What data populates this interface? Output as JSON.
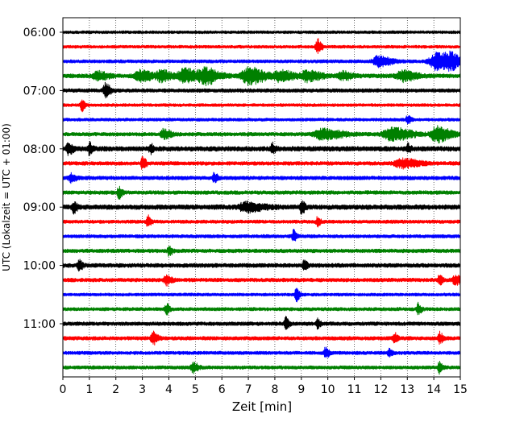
{
  "chart_data": {
    "type": "line",
    "title": "",
    "xlabel": "Zeit  [min]",
    "ylabel": "UTC (Lokalzeit = UTC + 01:00)",
    "xlim": [
      0,
      15
    ],
    "x_ticks": [
      0,
      1,
      2,
      3,
      4,
      5,
      6,
      7,
      8,
      9,
      10,
      11,
      12,
      13,
      14,
      15
    ],
    "y_tick_labels": [
      "06:00",
      "07:00",
      "08:00",
      "09:00",
      "10:00",
      "11:00"
    ],
    "grid": "vertical dotted",
    "trace_interval_minutes": 15,
    "traces": [
      {
        "start": "06:00",
        "color": "#000000",
        "noise": 0.25,
        "events": []
      },
      {
        "start": "06:15",
        "color": "#ff0000",
        "noise": 0.3,
        "events": [
          {
            "t": 9.6,
            "amp": 9,
            "dur": 0.12
          }
        ]
      },
      {
        "start": "06:30",
        "color": "#0000ff",
        "noise": 0.35,
        "events": [
          {
            "t": 11.9,
            "amp": 6,
            "dur": 0.4
          },
          {
            "t": 14.1,
            "amp": 10,
            "dur": 0.5
          },
          {
            "t": 14.6,
            "amp": 6,
            "dur": 0.4
          }
        ]
      },
      {
        "start": "06:45",
        "color": "#008000",
        "noise": 0.6,
        "events": [
          {
            "t": 1.3,
            "amp": 5,
            "dur": 0.3
          },
          {
            "t": 2.9,
            "amp": 6,
            "dur": 0.4
          },
          {
            "t": 3.7,
            "amp": 6,
            "dur": 0.3
          },
          {
            "t": 4.6,
            "amp": 8,
            "dur": 0.5
          },
          {
            "t": 5.4,
            "amp": 8,
            "dur": 0.4
          },
          {
            "t": 7.0,
            "amp": 10,
            "dur": 0.5
          },
          {
            "t": 8.2,
            "amp": 6,
            "dur": 0.4
          },
          {
            "t": 9.2,
            "amp": 6,
            "dur": 0.4
          },
          {
            "t": 10.5,
            "amp": 5,
            "dur": 0.3
          },
          {
            "t": 12.8,
            "amp": 6,
            "dur": 0.4
          }
        ]
      },
      {
        "start": "07:00",
        "color": "#000000",
        "noise": 0.5,
        "events": [
          {
            "t": 1.6,
            "amp": 8,
            "dur": 0.15
          }
        ]
      },
      {
        "start": "07:15",
        "color": "#ff0000",
        "noise": 0.3,
        "events": [
          {
            "t": 0.7,
            "amp": 7,
            "dur": 0.1
          }
        ]
      },
      {
        "start": "07:30",
        "color": "#0000ff",
        "noise": 0.3,
        "events": [
          {
            "t": 13.0,
            "amp": 5,
            "dur": 0.1
          }
        ]
      },
      {
        "start": "07:45",
        "color": "#008000",
        "noise": 0.5,
        "events": [
          {
            "t": 3.8,
            "amp": 6,
            "dur": 0.2
          },
          {
            "t": 9.8,
            "amp": 6,
            "dur": 0.6
          },
          {
            "t": 12.4,
            "amp": 7,
            "dur": 0.6
          },
          {
            "t": 14.1,
            "amp": 9,
            "dur": 0.4
          }
        ]
      },
      {
        "start": "08:00",
        "color": "#000000",
        "noise": 0.8,
        "events": [
          {
            "t": 0.2,
            "amp": 6,
            "dur": 0.15
          },
          {
            "t": 1.0,
            "amp": 7,
            "dur": 0.1
          },
          {
            "t": 3.3,
            "amp": 5,
            "dur": 0.1
          },
          {
            "t": 7.9,
            "amp": 6,
            "dur": 0.1
          },
          {
            "t": 13.0,
            "amp": 5,
            "dur": 0.1
          }
        ]
      },
      {
        "start": "08:15",
        "color": "#ff0000",
        "noise": 0.5,
        "events": [
          {
            "t": 3.0,
            "amp": 8,
            "dur": 0.1
          },
          {
            "t": 12.8,
            "amp": 5,
            "dur": 0.5
          }
        ]
      },
      {
        "start": "08:30",
        "color": "#0000ff",
        "noise": 0.5,
        "events": [
          {
            "t": 0.3,
            "amp": 5,
            "dur": 0.15
          },
          {
            "t": 5.7,
            "amp": 6,
            "dur": 0.1
          }
        ]
      },
      {
        "start": "08:45",
        "color": "#008000",
        "noise": 0.5,
        "events": [
          {
            "t": 2.1,
            "amp": 7,
            "dur": 0.1
          }
        ]
      },
      {
        "start": "09:00",
        "color": "#000000",
        "noise": 0.8,
        "events": [
          {
            "t": 0.4,
            "amp": 7,
            "dur": 0.1
          },
          {
            "t": 6.9,
            "amp": 5,
            "dur": 0.5
          },
          {
            "t": 9.0,
            "amp": 8,
            "dur": 0.1
          }
        ]
      },
      {
        "start": "09:15",
        "color": "#ff0000",
        "noise": 0.4,
        "events": [
          {
            "t": 3.2,
            "amp": 7,
            "dur": 0.1
          },
          {
            "t": 9.6,
            "amp": 5,
            "dur": 0.1
          }
        ]
      },
      {
        "start": "09:30",
        "color": "#0000ff",
        "noise": 0.4,
        "events": [
          {
            "t": 8.7,
            "amp": 7,
            "dur": 0.1
          }
        ]
      },
      {
        "start": "09:45",
        "color": "#008000",
        "noise": 0.5,
        "events": [
          {
            "t": 4.0,
            "amp": 6,
            "dur": 0.1
          }
        ]
      },
      {
        "start": "10:00",
        "color": "#000000",
        "noise": 0.6,
        "events": [
          {
            "t": 0.6,
            "amp": 7,
            "dur": 0.1
          },
          {
            "t": 9.1,
            "amp": 6,
            "dur": 0.1
          }
        ]
      },
      {
        "start": "10:15",
        "color": "#ff0000",
        "noise": 0.5,
        "events": [
          {
            "t": 3.9,
            "amp": 6,
            "dur": 0.15
          },
          {
            "t": 14.2,
            "amp": 6,
            "dur": 0.1
          },
          {
            "t": 14.8,
            "amp": 5,
            "dur": 0.2
          }
        ]
      },
      {
        "start": "10:30",
        "color": "#0000ff",
        "noise": 0.3,
        "events": [
          {
            "t": 8.8,
            "amp": 8,
            "dur": 0.1
          }
        ]
      },
      {
        "start": "10:45",
        "color": "#008000",
        "noise": 0.4,
        "events": [
          {
            "t": 3.9,
            "amp": 6,
            "dur": 0.1
          },
          {
            "t": 13.4,
            "amp": 7,
            "dur": 0.1
          }
        ]
      },
      {
        "start": "11:00",
        "color": "#000000",
        "noise": 0.5,
        "events": [
          {
            "t": 8.4,
            "amp": 7,
            "dur": 0.1
          },
          {
            "t": 9.6,
            "amp": 5,
            "dur": 0.1
          }
        ]
      },
      {
        "start": "11:15",
        "color": "#ff0000",
        "noise": 0.5,
        "events": [
          {
            "t": 3.4,
            "amp": 7,
            "dur": 0.15
          },
          {
            "t": 12.5,
            "amp": 6,
            "dur": 0.1
          },
          {
            "t": 14.2,
            "amp": 7,
            "dur": 0.1
          }
        ]
      },
      {
        "start": "11:30",
        "color": "#0000ff",
        "noise": 0.4,
        "events": [
          {
            "t": 9.9,
            "amp": 7,
            "dur": 0.1
          },
          {
            "t": 12.3,
            "amp": 5,
            "dur": 0.1
          }
        ]
      },
      {
        "start": "11:45",
        "color": "#008000",
        "noise": 0.4,
        "events": [
          {
            "t": 4.9,
            "amp": 6,
            "dur": 0.15
          },
          {
            "t": 14.2,
            "amp": 7,
            "dur": 0.1
          }
        ]
      }
    ]
  }
}
